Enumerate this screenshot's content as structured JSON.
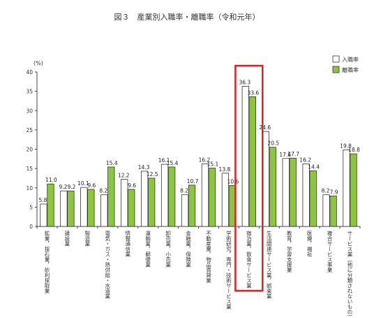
{
  "chart_data": {
    "type": "bar",
    "title": "図３　産業別入職率・離職率（令和元年）",
    "ylabel": "(%)",
    "ylim": [
      0,
      40
    ],
    "yticks": [
      0,
      5,
      10,
      15,
      20,
      25,
      30,
      35,
      40
    ],
    "grid": false,
    "legend_position": "top-right",
    "highlighted_category": "宿泊業，飲食サービス業",
    "highlight_color": "#e02020",
    "categories": [
      "鉱業，採石業，砂利採取業",
      "建設業",
      "製造業",
      "電気・ガス・熱供給・水道業",
      "情報通信業",
      "運輸業，郵便業",
      "卸売業，小売業",
      "金融業，保険業",
      "不動産業，物品賃貸業",
      "学術研究，専門・技術サービス業",
      "宿泊業，飲食サービス業",
      "生活関連サービス業，娯楽業",
      "教育，学習支援業",
      "医療，福祉",
      "複合サービス事業",
      "サービス業（他に分類されないもの）"
    ],
    "series": [
      {
        "name": "入職率",
        "color": "#ffffff",
        "values": [
          5.8,
          9.2,
          10.1,
          8.2,
          12.2,
          14.3,
          16.1,
          8.2,
          16.2,
          13.8,
          36.3,
          24.6,
          17.6,
          16.2,
          8.2,
          19.8
        ]
      },
      {
        "name": "離職率",
        "color": "#8cc63f",
        "values": [
          11.0,
          9.2,
          9.6,
          15.4,
          9.6,
          12.5,
          15.4,
          10.7,
          15.1,
          10.6,
          33.6,
          20.5,
          17.7,
          14.4,
          7.9,
          18.8
        ]
      }
    ]
  }
}
